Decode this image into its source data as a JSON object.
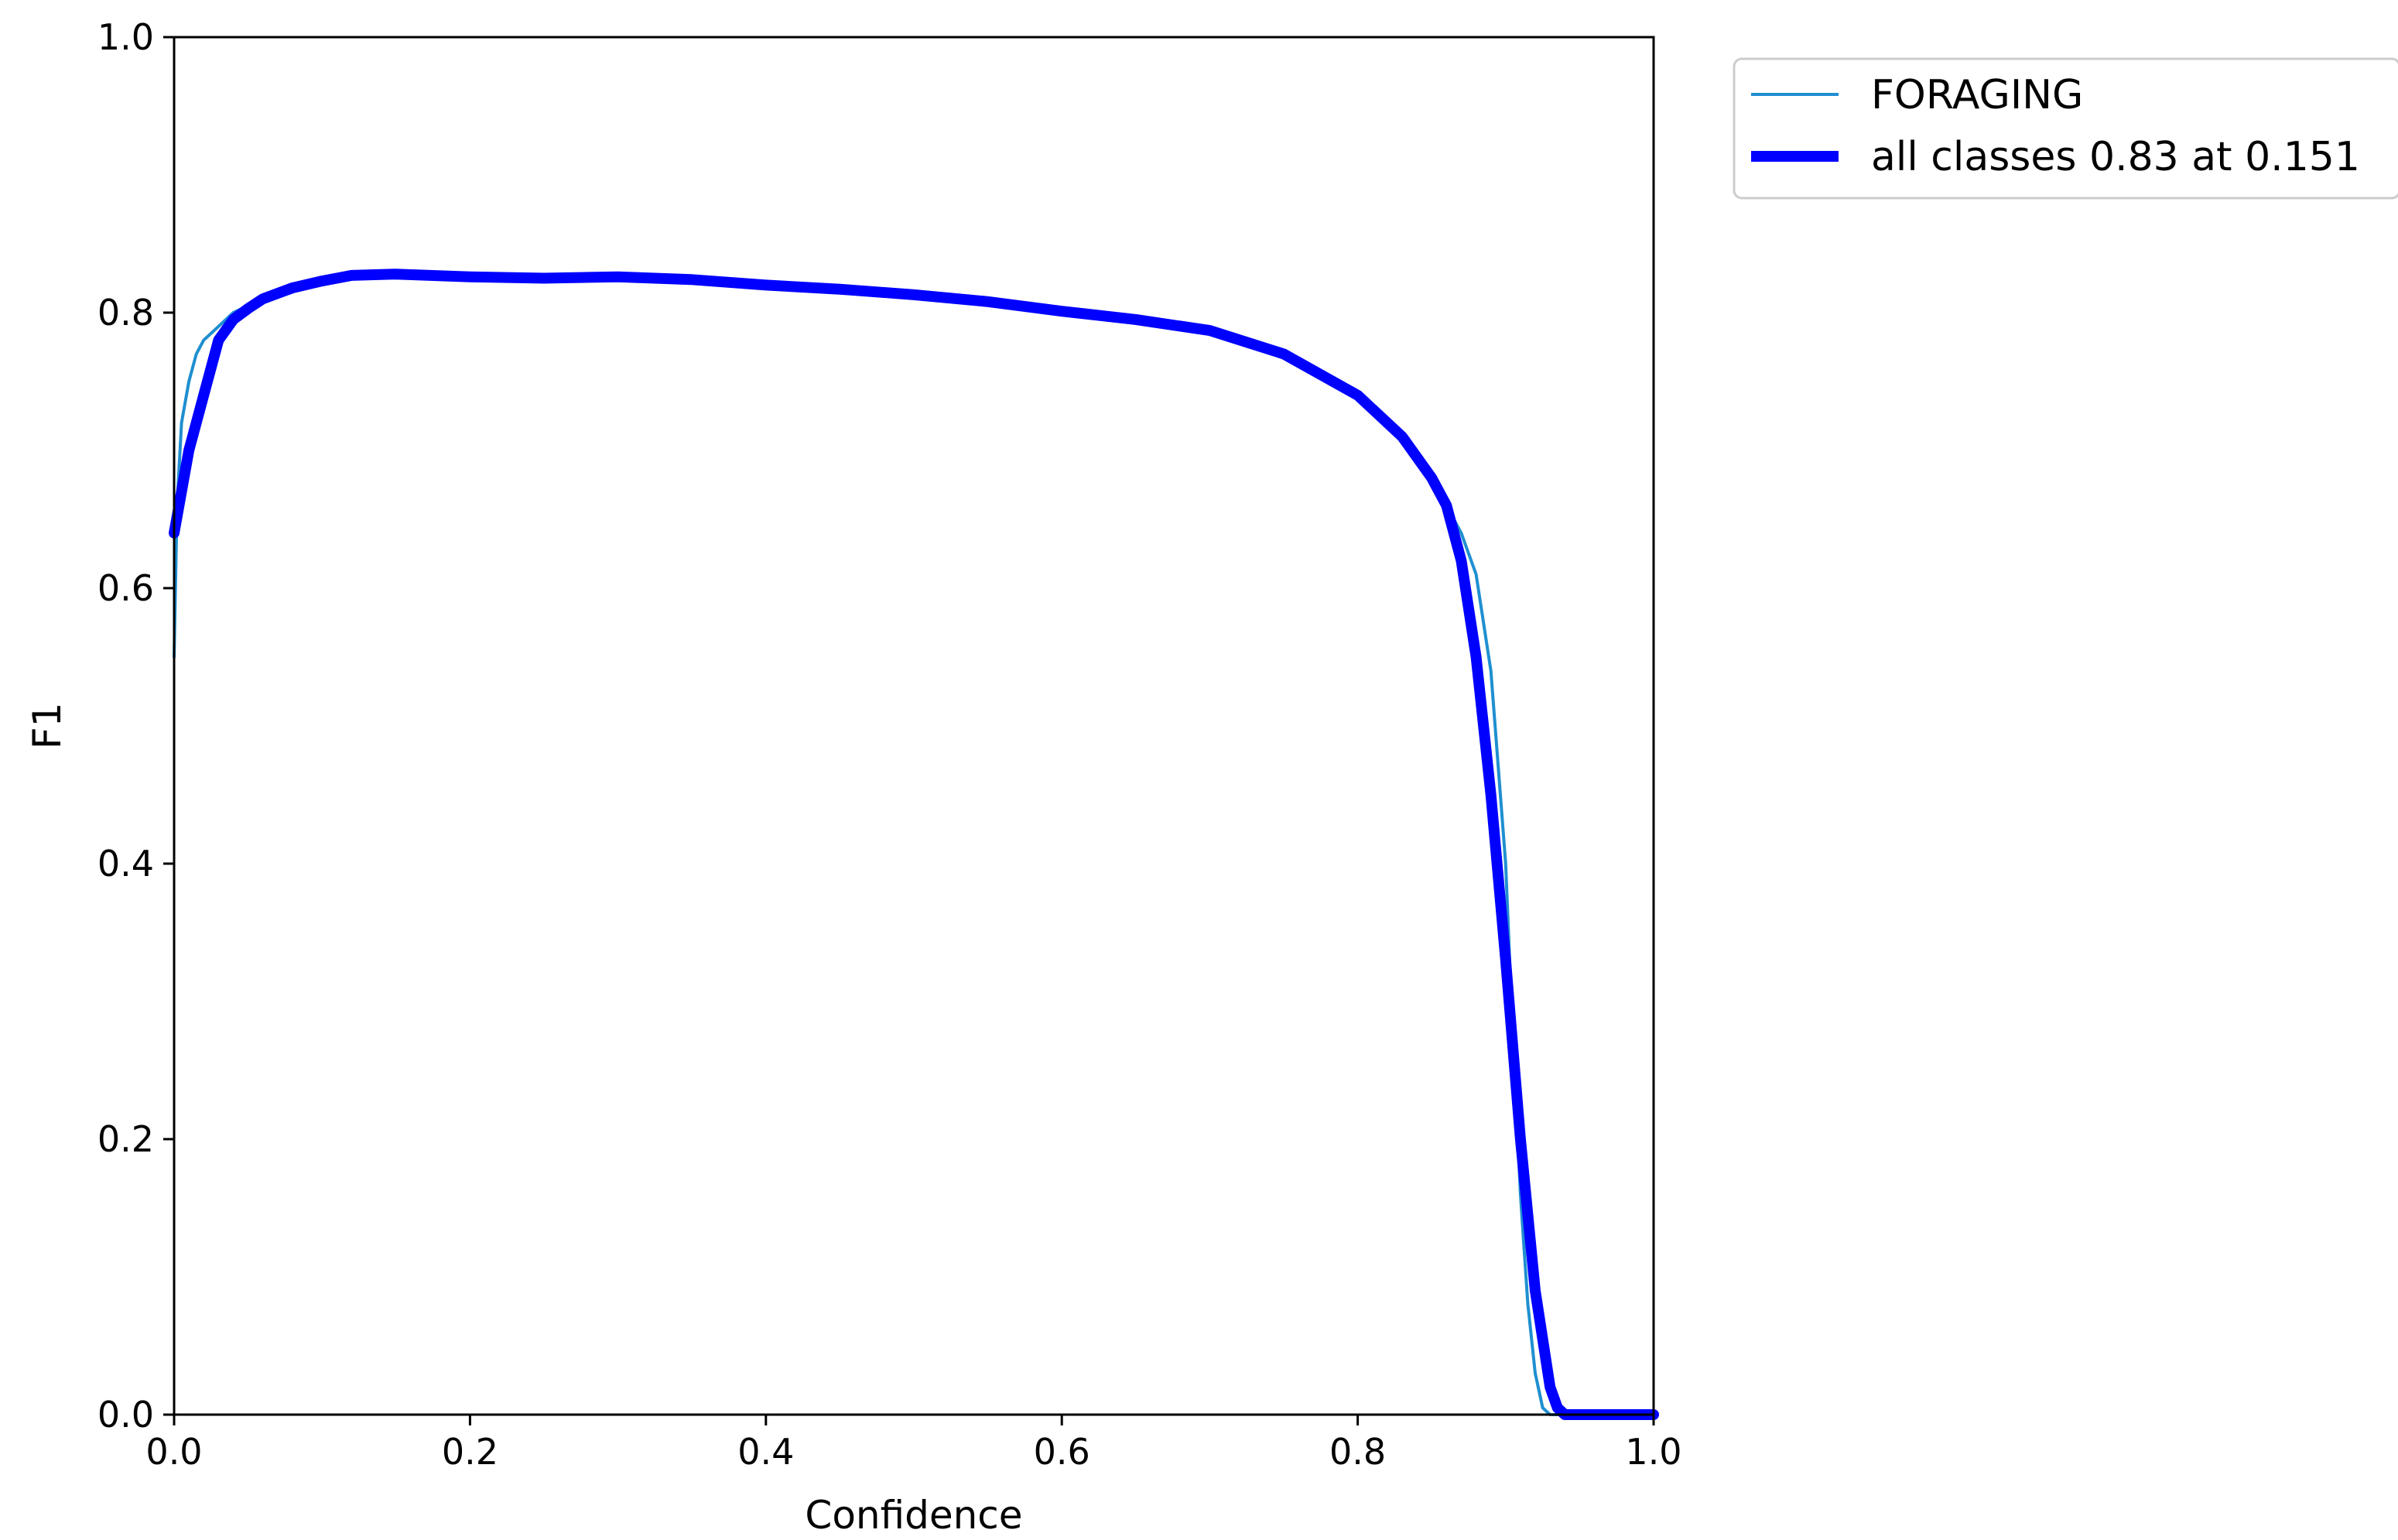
{
  "chart_data": {
    "type": "line",
    "xlabel": "Confidence",
    "ylabel": "F1",
    "xlim": [
      0,
      1
    ],
    "ylim": [
      0,
      1
    ],
    "xticks": [
      "0.0",
      "0.2",
      "0.4",
      "0.6",
      "0.8",
      "1.0"
    ],
    "yticks": [
      "0.0",
      "0.2",
      "0.4",
      "0.6",
      "0.8",
      "1.0"
    ],
    "grid": false,
    "legend_position": "outside-top-right",
    "series": [
      {
        "name": "FORAGING",
        "color": "#1f8fd0",
        "x": [
          0.0,
          0.002,
          0.005,
          0.01,
          0.015,
          0.02,
          0.03,
          0.04,
          0.05,
          0.06,
          0.08,
          0.1,
          0.12,
          0.15,
          0.2,
          0.25,
          0.3,
          0.35,
          0.4,
          0.45,
          0.5,
          0.55,
          0.6,
          0.65,
          0.7,
          0.75,
          0.8,
          0.83,
          0.85,
          0.87,
          0.88,
          0.89,
          0.9,
          0.905,
          0.91,
          0.915,
          0.92,
          0.925,
          0.93,
          0.94,
          1.0
        ],
        "y": [
          0.55,
          0.66,
          0.72,
          0.75,
          0.77,
          0.78,
          0.79,
          0.8,
          0.805,
          0.81,
          0.818,
          0.823,
          0.827,
          0.828,
          0.826,
          0.825,
          0.826,
          0.824,
          0.82,
          0.817,
          0.813,
          0.808,
          0.801,
          0.795,
          0.787,
          0.77,
          0.74,
          0.71,
          0.68,
          0.64,
          0.61,
          0.54,
          0.4,
          0.27,
          0.16,
          0.08,
          0.03,
          0.005,
          0.0,
          0.0,
          0.0
        ]
      },
      {
        "name": "all classes 0.83 at 0.151",
        "color": "#0000ff",
        "x": [
          0.0,
          0.01,
          0.02,
          0.03,
          0.04,
          0.05,
          0.06,
          0.08,
          0.1,
          0.12,
          0.15,
          0.2,
          0.25,
          0.3,
          0.35,
          0.4,
          0.45,
          0.5,
          0.55,
          0.6,
          0.65,
          0.7,
          0.75,
          0.8,
          0.83,
          0.85,
          0.86,
          0.87,
          0.88,
          0.89,
          0.9,
          0.91,
          0.92,
          0.93,
          0.935,
          0.94,
          1.0
        ],
        "y": [
          0.64,
          0.7,
          0.74,
          0.78,
          0.795,
          0.803,
          0.81,
          0.818,
          0.823,
          0.827,
          0.828,
          0.826,
          0.825,
          0.826,
          0.824,
          0.82,
          0.817,
          0.813,
          0.808,
          0.801,
          0.795,
          0.787,
          0.77,
          0.74,
          0.71,
          0.68,
          0.66,
          0.62,
          0.55,
          0.45,
          0.33,
          0.2,
          0.09,
          0.02,
          0.005,
          0.0,
          0.0
        ]
      }
    ]
  }
}
